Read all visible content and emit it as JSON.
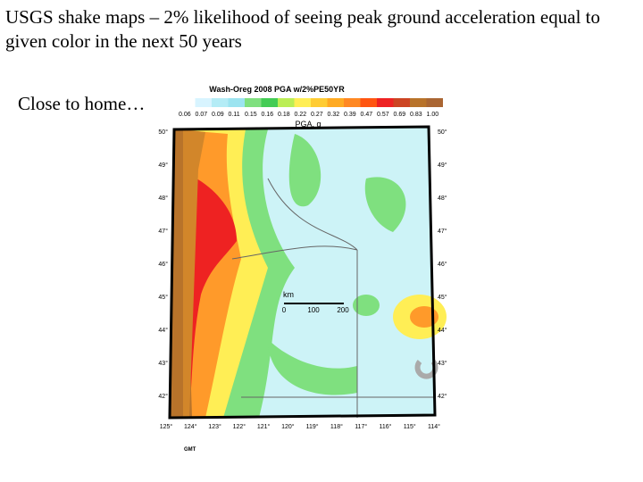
{
  "slide": {
    "title": "USGS shake maps – 2% likelihood of seeing peak ground acceleration equal to given color in the next 50 years",
    "bullet": "Close to home…"
  },
  "map": {
    "title": "Wash-Oreg 2008 PGA w/2%PE50YR",
    "scale_labels": [
      "0.06",
      "0.07",
      "0.09",
      "0.11",
      "0.15",
      "0.16",
      "0.18",
      "0.22",
      "0.27",
      "0.32",
      "0.39",
      "0.47",
      "0.57",
      "0.69",
      "0.83",
      "1.00"
    ],
    "scale_title": "PGA, g",
    "lat_labels": [
      "50°",
      "49°",
      "48°",
      "47°",
      "46°",
      "45°",
      "44°",
      "43°",
      "42°"
    ],
    "lon_labels": [
      "125°",
      "124°",
      "123°",
      "122°",
      "121°",
      "120°",
      "119°",
      "118°",
      "117°",
      "116°",
      "115°",
      "114°"
    ],
    "km_label": "km",
    "km_ticks": [
      "0",
      "100",
      "200"
    ],
    "footer": "GMT"
  }
}
